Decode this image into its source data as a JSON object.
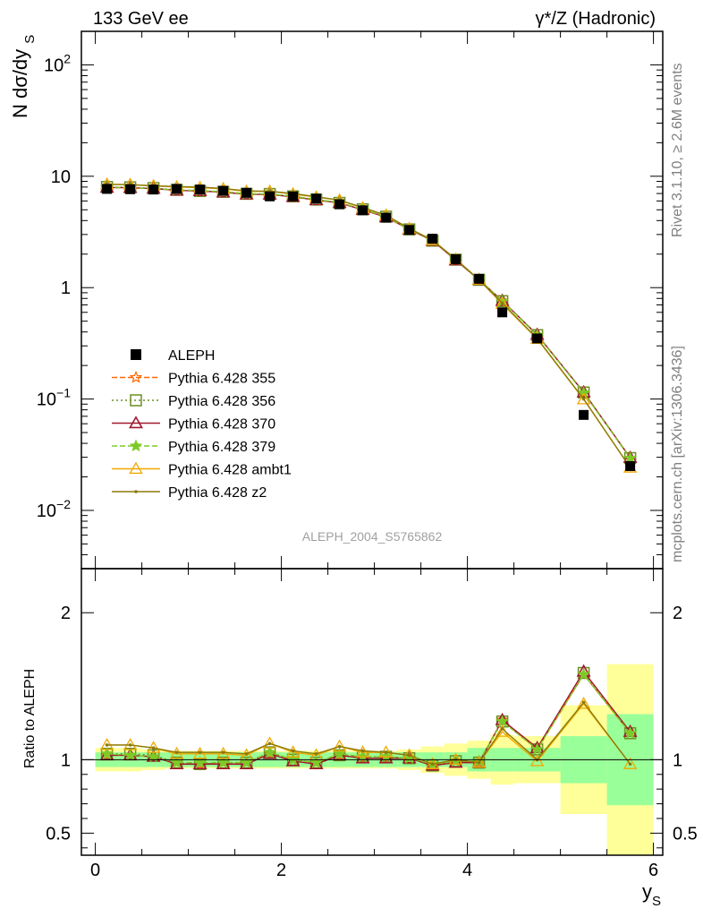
{
  "header": {
    "left_title": "133 GeV ee",
    "right_title": "γ*/Z (Hadronic)"
  },
  "side_labels": {
    "rivet": "Rivet 3.1.10, ≥ 2.6M events",
    "mcplots": "mcplots.cern.ch [arXiv:1306.3436]"
  },
  "analysis_id": "ALEPH_2004_S5765862",
  "chart_data": {
    "type": "line",
    "x_label": "y_S",
    "y_label_main": "N dσ/dy_S",
    "y_label_ratio": "Ratio to ALEPH",
    "x_range": [
      -0.15,
      6.1
    ],
    "x_ticks": [
      0,
      2,
      4,
      6
    ],
    "y_scale_main": "log",
    "y_range_main": [
      0.003,
      200
    ],
    "y_ticks_main": [
      {
        "value": 0.01,
        "label_base": "10",
        "label_exp": "−2"
      },
      {
        "value": 0.1,
        "label_base": "10",
        "label_exp": "−1"
      },
      {
        "value": 1,
        "label_base": "1",
        "label_exp": ""
      },
      {
        "value": 10,
        "label_base": "10",
        "label_exp": ""
      },
      {
        "value": 100,
        "label_base": "10",
        "label_exp": "2"
      }
    ],
    "y_range_ratio": [
      0.35,
      2.3
    ],
    "y_ticks_ratio": [
      0.5,
      1,
      2
    ],
    "legend_position": "middle-left",
    "x": [
      0.125,
      0.375,
      0.625,
      0.875,
      1.125,
      1.375,
      1.625,
      1.875,
      2.125,
      2.375,
      2.625,
      2.875,
      3.125,
      3.375,
      3.625,
      3.875,
      4.125,
      4.375,
      4.75,
      5.25,
      5.75
    ],
    "x_edges": [
      0,
      0.25,
      0.5,
      0.75,
      1,
      1.25,
      1.5,
      1.75,
      2,
      2.25,
      2.5,
      2.75,
      3,
      3.25,
      3.5,
      3.75,
      4,
      4.25,
      4.5,
      5,
      5.5,
      6
    ],
    "data": {
      "name": "ALEPH",
      "values": [
        7.7,
        7.65,
        7.6,
        7.7,
        7.6,
        7.4,
        7.1,
        6.6,
        6.6,
        6.3,
        5.6,
        4.95,
        4.25,
        3.3,
        2.75,
        1.8,
        1.2,
        0.6,
        0.35,
        0.072,
        0.025
      ],
      "band_inner": [
        0.05,
        0.05,
        0.05,
        0.05,
        0.05,
        0.05,
        0.05,
        0.05,
        0.05,
        0.05,
        0.05,
        0.05,
        0.05,
        0.05,
        0.05,
        0.05,
        0.08,
        0.08,
        0.08,
        0.16,
        0.31
      ],
      "band_outer": [
        0.08,
        0.08,
        0.07,
        0.06,
        0.06,
        0.06,
        0.06,
        0.06,
        0.06,
        0.06,
        0.06,
        0.06,
        0.06,
        0.07,
        0.09,
        0.11,
        0.13,
        0.17,
        0.16,
        0.37,
        0.65
      ]
    },
    "series": [
      {
        "name": "Pythia 6.428 355",
        "color": "#ff6600",
        "dash": "6,3",
        "marker": "star",
        "ratio": [
          1.03,
          1.03,
          1.02,
          0.98,
          0.97,
          0.98,
          0.98,
          1.04,
          1.0,
          0.98,
          1.03,
          1.01,
          1.01,
          1.01,
          0.96,
          0.99,
          0.98,
          1.27,
          1.07,
          1.58,
          1.18
        ]
      },
      {
        "name": "Pythia 6.428 356",
        "color": "#6b8e23",
        "dash": "2,3",
        "marker": "square",
        "ratio": [
          1.04,
          1.04,
          1.03,
          0.98,
          0.97,
          0.98,
          0.98,
          1.05,
          1.0,
          0.98,
          1.03,
          1.02,
          1.02,
          1.01,
          0.96,
          0.99,
          0.98,
          1.26,
          1.07,
          1.59,
          1.18
        ]
      },
      {
        "name": "Pythia 6.428 370",
        "color": "#a0192e",
        "dash": "",
        "marker": "triangle",
        "ratio": [
          1.03,
          1.03,
          1.02,
          0.97,
          0.97,
          0.97,
          0.97,
          1.04,
          0.99,
          0.97,
          1.03,
          1.01,
          1.01,
          1.01,
          0.96,
          0.98,
          0.98,
          1.27,
          1.08,
          1.6,
          1.19
        ]
      },
      {
        "name": "Pythia 6.428 379",
        "color": "#7ec928",
        "dash": "6,3",
        "marker": "star",
        "ratio": [
          1.04,
          1.03,
          1.02,
          0.98,
          0.98,
          0.98,
          0.98,
          1.05,
          1.0,
          0.98,
          1.04,
          1.02,
          1.02,
          1.01,
          0.97,
          0.99,
          0.99,
          1.26,
          1.07,
          1.58,
          1.18
        ]
      },
      {
        "name": "Pythia 6.428 ambt1",
        "color": "#f0a800",
        "dash": "",
        "marker": "triangle-open",
        "ratio": [
          1.1,
          1.1,
          1.08,
          1.04,
          1.04,
          1.04,
          1.03,
          1.11,
          1.05,
          1.03,
          1.09,
          1.05,
          1.05,
          1.03,
          0.97,
          1.0,
          0.98,
          1.19,
          0.99,
          1.38,
          0.97
        ]
      },
      {
        "name": "Pythia 6.428 z2",
        "color": "#8a7a0a",
        "dash": "",
        "marker": "dot",
        "ratio": [
          1.1,
          1.1,
          1.08,
          1.05,
          1.05,
          1.05,
          1.04,
          1.11,
          1.06,
          1.04,
          1.09,
          1.06,
          1.05,
          1.03,
          0.97,
          1.0,
          0.98,
          1.21,
          1.0,
          1.39,
          0.97
        ]
      }
    ]
  }
}
